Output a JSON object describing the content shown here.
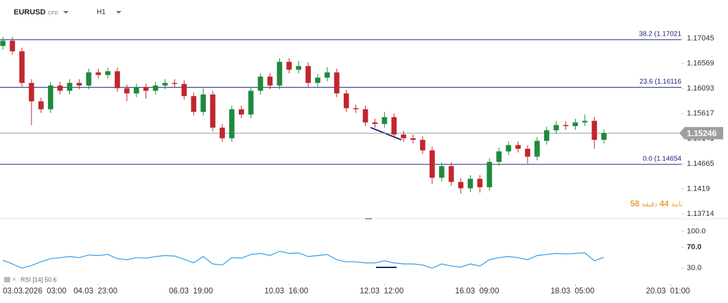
{
  "header": {
    "symbol": "EURUSD",
    "kind": "CFD",
    "timeframe": "H1"
  },
  "chart_data": [
    {
      "type": "candlestick",
      "x": [
        0,
        1,
        2,
        3,
        4,
        5,
        6,
        7,
        8,
        9,
        10,
        11,
        12,
        13,
        14,
        15,
        16,
        17,
        18,
        19,
        20,
        21,
        22,
        23,
        24,
        25,
        26,
        27,
        28,
        29,
        30,
        31,
        32,
        33,
        34,
        35,
        36,
        37,
        38,
        39,
        40,
        41,
        42,
        43,
        44,
        45,
        46,
        47,
        48,
        49,
        50,
        51,
        52,
        53,
        54,
        55,
        56,
        57,
        58,
        59,
        60,
        61,
        62,
        63
      ],
      "open": [
        1.169,
        1.17,
        1.168,
        1.162,
        1.1585,
        1.157,
        1.1615,
        1.1605,
        1.162,
        1.1615,
        1.164,
        1.1635,
        1.1642,
        1.161,
        1.16,
        1.1612,
        1.1605,
        1.1615,
        1.162,
        1.1618,
        1.1595,
        1.1565,
        1.1598,
        1.1535,
        1.1515,
        1.157,
        1.156,
        1.1605,
        1.1632,
        1.1615,
        1.166,
        1.1645,
        1.1652,
        1.162,
        1.163,
        1.164,
        1.16,
        1.1572,
        1.157,
        1.1545,
        1.1542,
        1.1555,
        1.1522,
        1.1515,
        1.1512,
        1.1492,
        1.144,
        1.1462,
        1.1432,
        1.142,
        1.1438,
        1.1422,
        1.147,
        1.149,
        1.1502,
        1.1495,
        1.148,
        1.151,
        1.153,
        1.154,
        1.1538,
        1.1545,
        1.1548,
        1.1512
      ],
      "high": [
        1.1707,
        1.1707,
        1.1687,
        1.1627,
        1.1592,
        1.1622,
        1.1622,
        1.1627,
        1.1627,
        1.1647,
        1.1647,
        1.1649,
        1.1649,
        1.1617,
        1.1619,
        1.1619,
        1.1622,
        1.1627,
        1.1627,
        1.1625,
        1.1602,
        1.161,
        1.1605,
        1.1542,
        1.1577,
        1.1577,
        1.1612,
        1.1639,
        1.1639,
        1.1667,
        1.1667,
        1.1662,
        1.1659,
        1.1637,
        1.165,
        1.1647,
        1.1607,
        1.1579,
        1.1577,
        1.1552,
        1.1565,
        1.1562,
        1.1529,
        1.1522,
        1.1519,
        1.1499,
        1.1469,
        1.1469,
        1.1439,
        1.1445,
        1.1445,
        1.1477,
        1.1497,
        1.1509,
        1.1509,
        1.1502,
        1.1517,
        1.1537,
        1.1547,
        1.1547,
        1.1552,
        1.156,
        1.1555,
        1.1532
      ],
      "low": [
        1.1683,
        1.1673,
        1.1613,
        1.154,
        1.1563,
        1.1563,
        1.1598,
        1.1598,
        1.1608,
        1.1608,
        1.1628,
        1.1628,
        1.1603,
        1.1585,
        1.1593,
        1.159,
        1.1598,
        1.1608,
        1.1611,
        1.1588,
        1.1558,
        1.1558,
        1.1528,
        1.1508,
        1.1508,
        1.1553,
        1.1553,
        1.1598,
        1.1608,
        1.1608,
        1.1638,
        1.1638,
        1.1613,
        1.1613,
        1.1623,
        1.1593,
        1.1565,
        1.1563,
        1.1538,
        1.1535,
        1.1535,
        1.1515,
        1.1508,
        1.1505,
        1.1485,
        1.1428,
        1.1433,
        1.1425,
        1.141,
        1.1413,
        1.1412,
        1.1415,
        1.1463,
        1.1483,
        1.1488,
        1.1467,
        1.1473,
        1.1503,
        1.1523,
        1.1531,
        1.1531,
        1.1538,
        1.1495,
        1.1505
      ],
      "close": [
        1.17,
        1.168,
        1.162,
        1.1585,
        1.157,
        1.1615,
        1.1605,
        1.162,
        1.1615,
        1.164,
        1.1635,
        1.1642,
        1.161,
        1.16,
        1.1612,
        1.1605,
        1.1615,
        1.162,
        1.1618,
        1.1595,
        1.1565,
        1.1598,
        1.1535,
        1.1515,
        1.157,
        1.156,
        1.1605,
        1.1632,
        1.1615,
        1.166,
        1.1645,
        1.1652,
        1.162,
        1.163,
        1.164,
        1.16,
        1.1572,
        1.157,
        1.1545,
        1.1542,
        1.1555,
        1.1522,
        1.1515,
        1.1512,
        1.1492,
        1.144,
        1.1462,
        1.1432,
        1.142,
        1.1438,
        1.1422,
        1.147,
        1.149,
        1.1502,
        1.1495,
        1.148,
        1.151,
        1.153,
        1.154,
        1.1538,
        1.1545,
        1.1548,
        1.1512,
        1.1525
      ],
      "up_color": "#1f8a3e",
      "down_color": "#c1272d",
      "xlim": [
        -0.3,
        70.9
      ],
      "xticks": [
        {
          "value": 0,
          "label": "03.03.2026  03:00"
        },
        {
          "value": 10,
          "label": "04.03  23:00"
        },
        {
          "value": 20,
          "label": "06.03  19:00"
        },
        {
          "value": 30,
          "label": "10.03  16:00"
        },
        {
          "value": 40,
          "label": "12.03  12:00"
        },
        {
          "value": 50,
          "label": "16.03  09:00"
        },
        {
          "value": 60,
          "label": "18.03  05:00"
        },
        {
          "value": 70,
          "label": "20.03  01:00"
        }
      ],
      "ylim": [
        1.13636,
        1.17279
      ],
      "yticks": [
        1.17045,
        1.16569,
        1.16093,
        1.15617,
        1.15141,
        1.14665,
        1.1419,
        1.13714
      ],
      "levels": [
        {
          "label": "38.2 (1.17021",
          "value": 1.17021
        },
        {
          "label": "23.6 (1.16116",
          "value": 1.16116
        },
        {
          "label": "0.0 (1.14654",
          "value": 1.14654
        }
      ],
      "level_color": "#1a237e",
      "current_price": 1.15246,
      "countdown": {
        "seconds": 58,
        "seconds_unit": "ثانية",
        "minutes": 44,
        "minutes_unit": "دقيقة"
      }
    },
    {
      "type": "line",
      "title": "RSI [14]",
      "series": [
        {
          "name": "RSI",
          "color": "#2e9be6",
          "values": [
            45,
            38,
            30,
            35,
            42,
            48,
            50,
            52,
            50,
            55,
            54,
            56,
            48,
            46,
            50,
            49,
            52,
            54,
            53,
            47,
            40,
            52,
            38,
            36,
            50,
            49,
            56,
            58,
            54,
            62,
            58,
            59,
            52,
            54,
            56,
            46,
            42,
            42,
            40,
            40,
            44,
            40,
            38,
            38,
            36,
            30,
            38,
            34,
            32,
            38,
            34,
            46,
            50,
            52,
            50,
            46,
            54,
            56,
            58,
            57,
            58,
            59,
            44,
            50.6
          ]
        }
      ],
      "ylim": [
        12,
        120
      ],
      "yticks": [
        {
          "value": 100,
          "label": "100.0"
        },
        {
          "value": 70,
          "label": "70.0"
        },
        {
          "value": 30,
          "label": "30.0"
        }
      ]
    }
  ]
}
